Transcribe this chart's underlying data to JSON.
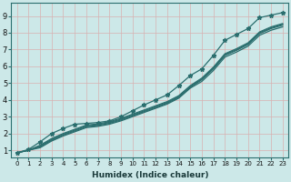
{
  "xlabel": "Humidex (Indice chaleur)",
  "bg_color": "#cce8e8",
  "line_color": "#2a6e6e",
  "grid_color": "#d8b0b0",
  "xlim": [
    -0.5,
    23.5
  ],
  "ylim": [
    0.6,
    9.8
  ],
  "x_ticks": [
    0,
    1,
    2,
    3,
    4,
    5,
    6,
    7,
    8,
    9,
    10,
    11,
    12,
    13,
    14,
    15,
    16,
    17,
    18,
    19,
    20,
    21,
    22,
    23
  ],
  "y_ticks": [
    1,
    2,
    3,
    4,
    5,
    6,
    7,
    8,
    9
  ],
  "lines": [
    [
      0.85,
      1.0,
      1.15,
      1.55,
      1.85,
      2.1,
      2.35,
      2.42,
      2.55,
      2.75,
      3.0,
      3.25,
      3.5,
      3.75,
      4.1,
      4.7,
      5.1,
      5.75,
      6.55,
      6.85,
      7.2,
      7.85,
      8.15,
      8.35
    ],
    [
      0.85,
      1.0,
      1.2,
      1.6,
      1.9,
      2.15,
      2.4,
      2.47,
      2.6,
      2.8,
      3.05,
      3.3,
      3.55,
      3.8,
      4.15,
      4.75,
      5.2,
      5.85,
      6.65,
      6.95,
      7.3,
      7.95,
      8.25,
      8.45
    ],
    [
      0.85,
      1.0,
      1.25,
      1.65,
      1.95,
      2.2,
      2.45,
      2.52,
      2.65,
      2.85,
      3.1,
      3.35,
      3.6,
      3.85,
      4.2,
      4.8,
      5.25,
      5.9,
      6.7,
      7.0,
      7.35,
      8.0,
      8.3,
      8.5
    ],
    [
      0.85,
      1.0,
      1.3,
      1.7,
      2.0,
      2.25,
      2.5,
      2.57,
      2.7,
      2.9,
      3.15,
      3.4,
      3.65,
      3.9,
      4.25,
      4.85,
      5.3,
      5.95,
      6.75,
      7.05,
      7.4,
      8.05,
      8.35,
      8.55
    ],
    [
      0.85,
      1.05,
      1.5,
      2.0,
      2.3,
      2.55,
      2.6,
      2.65,
      2.75,
      3.0,
      3.35,
      3.7,
      4.0,
      4.3,
      4.85,
      5.45,
      5.85,
      6.65,
      7.55,
      7.9,
      8.25,
      8.9,
      9.05,
      9.2
    ]
  ],
  "marked_line_idx": 4,
  "x_tick_fontsize": 5,
  "y_tick_fontsize": 6,
  "xlabel_fontsize": 6.5
}
